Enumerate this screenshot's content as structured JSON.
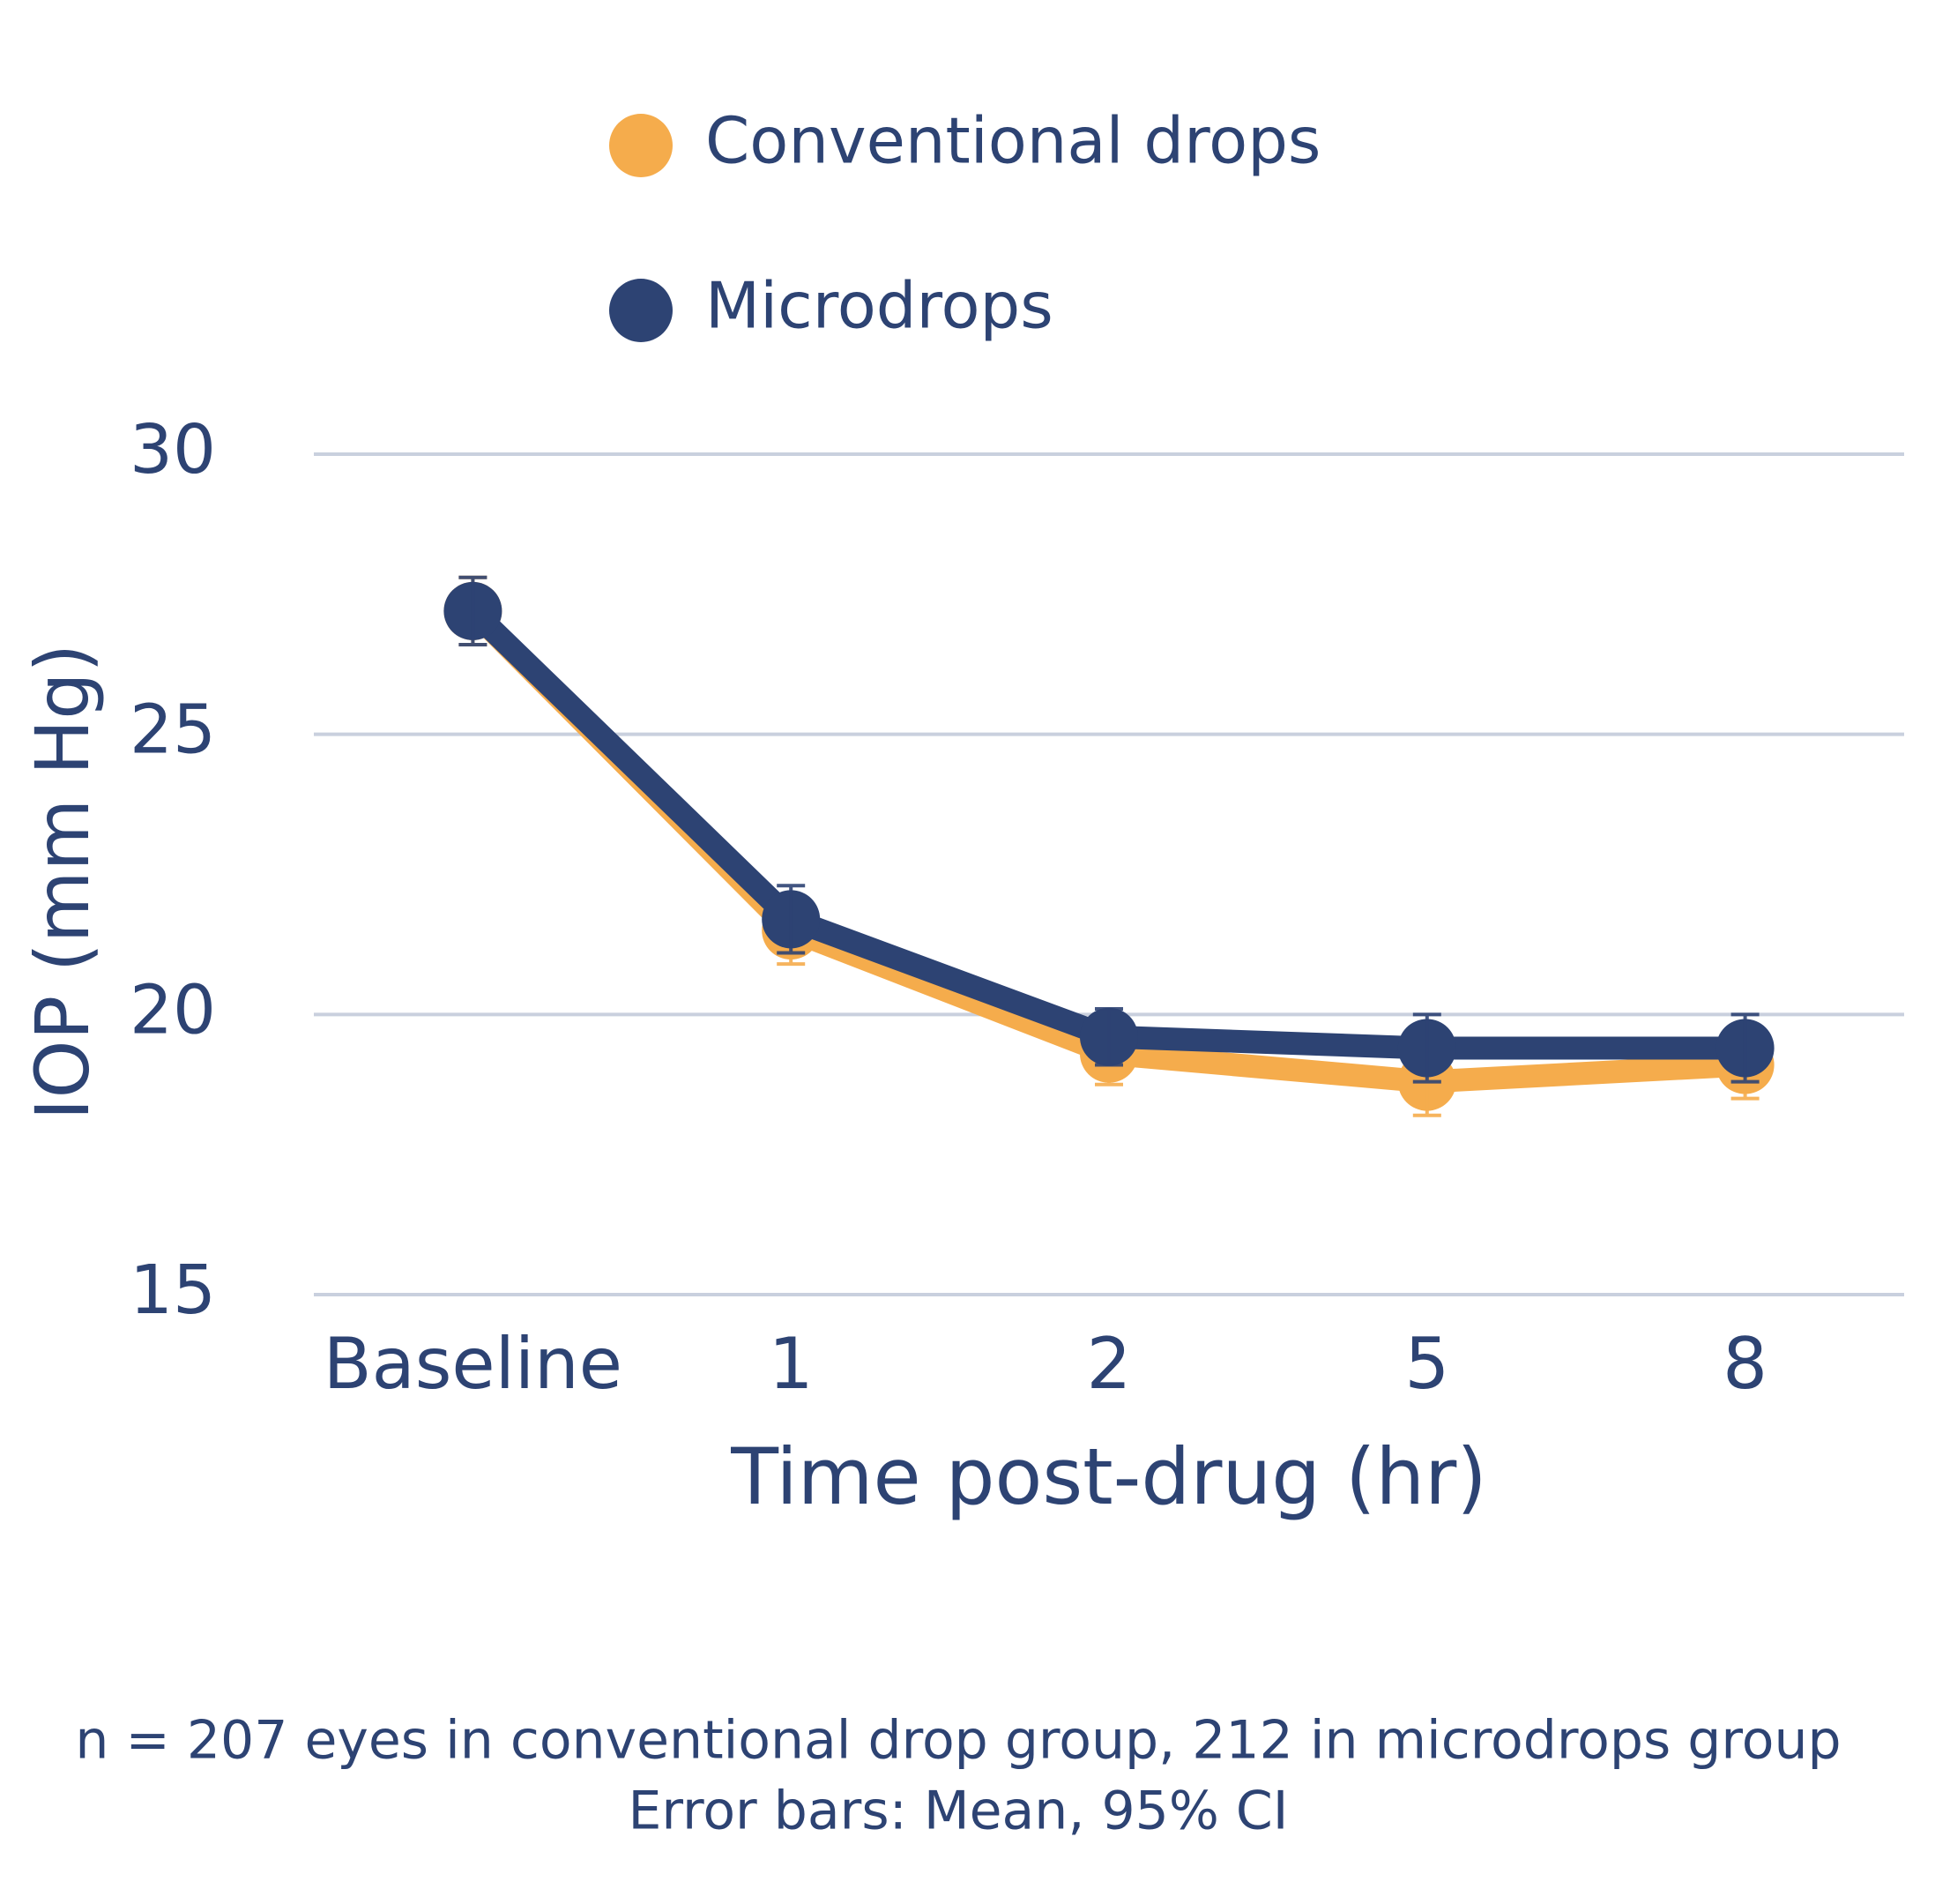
{
  "chart_data": {
    "type": "line",
    "categories": [
      "Baseline",
      "1",
      "2",
      "5",
      "8"
    ],
    "series": [
      {
        "name": "Conventional drops",
        "color": "#f5ac4c",
        "values": [
          27.2,
          21.5,
          19.3,
          18.8,
          19.1
        ],
        "errors": [
          0.6,
          0.6,
          0.55,
          0.6,
          0.6
        ]
      },
      {
        "name": "Microdrops",
        "color": "#2d4373",
        "values": [
          27.2,
          21.7,
          19.6,
          19.4,
          19.4
        ],
        "errors": [
          0.6,
          0.6,
          0.5,
          0.6,
          0.6
        ]
      }
    ],
    "ylim": [
      15,
      30
    ],
    "yticks": [
      15,
      20,
      25,
      30
    ],
    "grid": true,
    "ylabel": "IOP (mm Hg)",
    "xlabel": "Time post-drug (hr)",
    "footnotes": [
      "n = 207 eyes in conventional drop group, 212 in microdrops group",
      "Error bars: Mean, 95% CI"
    ]
  }
}
